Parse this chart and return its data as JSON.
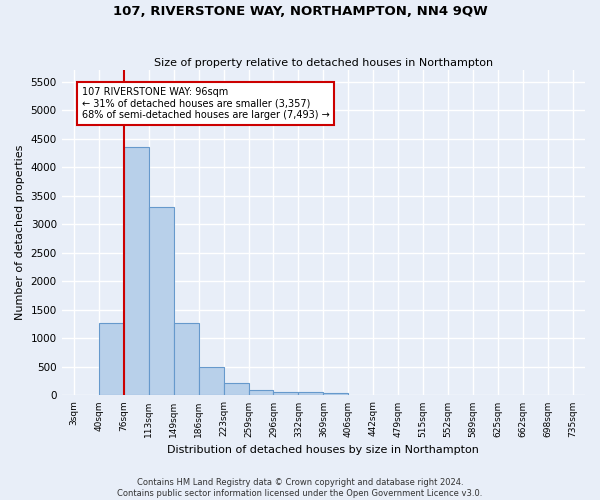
{
  "title": "107, RIVERSTONE WAY, NORTHAMPTON, NN4 9QW",
  "subtitle": "Size of property relative to detached houses in Northampton",
  "xlabel": "Distribution of detached houses by size in Northampton",
  "ylabel": "Number of detached properties",
  "footer_line1": "Contains HM Land Registry data © Crown copyright and database right 2024.",
  "footer_line2": "Contains public sector information licensed under the Open Government Licence v3.0.",
  "bin_labels": [
    "3sqm",
    "40sqm",
    "76sqm",
    "113sqm",
    "149sqm",
    "186sqm",
    "223sqm",
    "259sqm",
    "296sqm",
    "332sqm",
    "369sqm",
    "406sqm",
    "442sqm",
    "479sqm",
    "515sqm",
    "552sqm",
    "589sqm",
    "625sqm",
    "662sqm",
    "698sqm",
    "735sqm"
  ],
  "bar_heights": [
    0,
    1270,
    4350,
    3300,
    1270,
    490,
    220,
    90,
    60,
    55,
    50,
    0,
    0,
    0,
    0,
    0,
    0,
    0,
    0,
    0,
    0
  ],
  "bar_color": "#b8d0ea",
  "bar_edge_color": "#6699cc",
  "vline_label_idx": 2,
  "vline_color": "#cc0000",
  "annotation_text": "107 RIVERSTONE WAY: 96sqm\n← 31% of detached houses are smaller (3,357)\n68% of semi-detached houses are larger (7,493) →",
  "ylim": [
    0,
    5700
  ],
  "yticks": [
    0,
    500,
    1000,
    1500,
    2000,
    2500,
    3000,
    3500,
    4000,
    4500,
    5000,
    5500
  ],
  "background_color": "#e8eef8",
  "grid_color": "#ffffff",
  "figsize": [
    6.0,
    5.0
  ],
  "dpi": 100
}
